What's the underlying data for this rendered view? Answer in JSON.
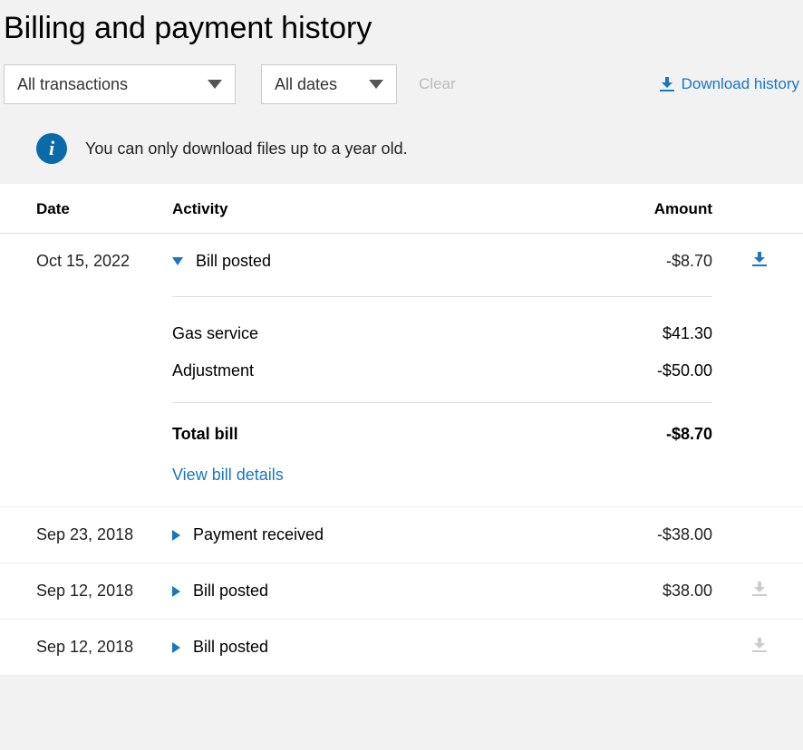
{
  "page": {
    "title": "Billing and payment history"
  },
  "filters": {
    "transactions_label": "All transactions",
    "dates_label": "All dates",
    "clear_label": "Clear"
  },
  "download_link": {
    "label": "Download history"
  },
  "info": {
    "icon_char": "i",
    "text": "You can only download files up to a year old."
  },
  "columns": {
    "date": "Date",
    "activity": "Activity",
    "amount": "Amount"
  },
  "rows": [
    {
      "date": "Oct 15, 2022",
      "activity": "Bill posted",
      "amount": "-$8.70",
      "expanded": true,
      "download_enabled": true,
      "details": {
        "lines": [
          {
            "label": "Gas service",
            "value": "$41.30"
          },
          {
            "label": "Adjustment",
            "value": "-$50.00"
          }
        ],
        "total_label": "Total bill",
        "total_value": "-$8.70",
        "view_label": "View bill details"
      }
    },
    {
      "date": "Sep 23, 2018",
      "activity": "Payment received",
      "amount": "-$38.00",
      "expanded": false,
      "download_enabled": false,
      "show_download": false
    },
    {
      "date": "Sep 12, 2018",
      "activity": "Bill posted",
      "amount": "$38.00",
      "expanded": false,
      "download_enabled": false,
      "show_download": true
    },
    {
      "date": "Sep 12, 2018",
      "activity": "Bill posted",
      "amount": "",
      "expanded": false,
      "download_enabled": false,
      "show_download": true
    }
  ],
  "colors": {
    "link": "#1976c2",
    "info_bg": "#0b6aa8",
    "page_bg": "#f2f2f2",
    "border": "#e0e0e0",
    "disabled_icon": "#cccccc"
  }
}
